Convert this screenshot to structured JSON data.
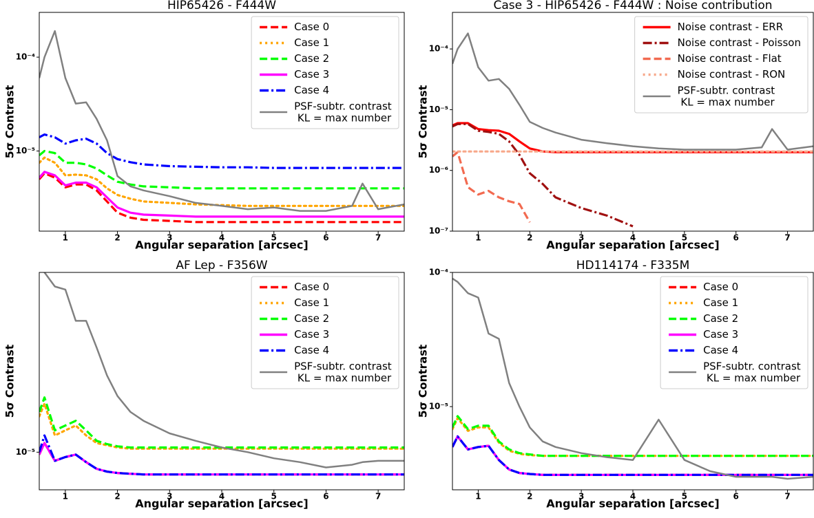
{
  "chart_data": [
    {
      "type": "line",
      "title": "HIP65426 - F444W",
      "xlabel": "Angular separation [arcsec]",
      "ylabel": "5σ Contrast",
      "yscale": "log",
      "legend": "upper right",
      "xlim": [
        0.5,
        7.5
      ],
      "xticks": [
        1,
        2,
        3,
        4,
        5,
        6,
        7
      ],
      "ylim": [
        1.4e-06,
        0.0003
      ],
      "yticks": [
        {
          "value": 1e-05,
          "label": "10⁻⁵"
        },
        {
          "value": 0.0001,
          "label": "10⁻⁴"
        }
      ],
      "x": [
        0.5,
        0.6,
        0.8,
        1.0,
        1.2,
        1.4,
        1.6,
        1.8,
        2.0,
        2.25,
        2.5,
        3,
        3.5,
        4,
        4.5,
        5,
        5.5,
        6,
        6.5,
        6.7,
        7,
        7.5
      ],
      "series": [
        {
          "name": "Case 0",
          "color": "#ff0000",
          "dash": "dashed",
          "values": [
            5e-06,
            5.8e-06,
            5.2e-06,
            4.1e-06,
            4.4e-06,
            4.4e-06,
            3.8e-06,
            2.9e-06,
            2.2e-06,
            1.95e-06,
            1.85e-06,
            1.8e-06,
            1.75e-06,
            1.75e-06,
            1.75e-06,
            1.75e-06,
            1.75e-06,
            1.75e-06,
            1.75e-06,
            1.75e-06,
            1.75e-06,
            1.75e-06
          ]
        },
        {
          "name": "Case 1",
          "color": "#ffa500",
          "dash": "dotted",
          "values": [
            7.5e-06,
            8.5e-06,
            7.5e-06,
            5.5e-06,
            5.6e-06,
            5.5e-06,
            5e-06,
            4e-06,
            3.4e-06,
            3.1e-06,
            2.9e-06,
            2.8e-06,
            2.7e-06,
            2.65e-06,
            2.6e-06,
            2.6e-06,
            2.6e-06,
            2.6e-06,
            2.6e-06,
            2.6e-06,
            2.6e-06,
            2.6e-06
          ]
        },
        {
          "name": "Case 2",
          "color": "#00ff00",
          "dash": "dashed",
          "values": [
            9e-06,
            1e-05,
            9.5e-06,
            7.5e-06,
            7.5e-06,
            7.2e-06,
            6.5e-06,
            5.5e-06,
            4.7e-06,
            4.4e-06,
            4.2e-06,
            4.1e-06,
            4e-06,
            4e-06,
            4e-06,
            4e-06,
            4e-06,
            4e-06,
            4e-06,
            4e-06,
            4e-06,
            4e-06
          ]
        },
        {
          "name": "Case 3",
          "color": "#ff00ff",
          "dash": "solid",
          "values": [
            5.2e-06,
            6e-06,
            5.5e-06,
            4.3e-06,
            4.6e-06,
            4.6e-06,
            4.1e-06,
            3.2e-06,
            2.5e-06,
            2.2e-06,
            2.1e-06,
            2.05e-06,
            2e-06,
            2e-06,
            2e-06,
            2e-06,
            2e-06,
            2e-06,
            2e-06,
            2e-06,
            2e-06,
            2e-06
          ]
        },
        {
          "name": "Case 4",
          "color": "#0000ff",
          "dash": "dashdot",
          "values": [
            1.4e-05,
            1.5e-05,
            1.4e-05,
            1.2e-05,
            1.3e-05,
            1.35e-05,
            1.2e-05,
            9.5e-06,
            8.2e-06,
            7.6e-06,
            7.2e-06,
            6.9e-06,
            6.8e-06,
            6.7e-06,
            6.7e-06,
            6.6e-06,
            6.6e-06,
            6.6e-06,
            6.6e-06,
            6.6e-06,
            6.6e-06,
            6.6e-06
          ]
        },
        {
          "name": "PSF-subtr. contrast\n KL = max number",
          "color": "#808080",
          "dash": "solid",
          "values": [
            6e-05,
            0.0001,
            0.00019,
            6e-05,
            3.2e-05,
            3.3e-05,
            2.2e-05,
            1.3e-05,
            5.4e-06,
            4.2e-06,
            3.8e-06,
            3.3e-06,
            2.8e-06,
            2.6e-06,
            2.4e-06,
            2.5e-06,
            2.3e-06,
            2.3e-06,
            2.6e-06,
            4.5e-06,
            2.4e-06,
            2.7e-06
          ]
        }
      ]
    },
    {
      "type": "line",
      "title": "Case 3 - HIP65426 - F444W : Noise contribution",
      "xlabel": "Angular separation [arcsec]",
      "ylabel": "5σ Contrast",
      "yscale": "log",
      "legend": "upper right",
      "xlim": [
        0.5,
        7.5
      ],
      "xticks": [
        1,
        2,
        3,
        4,
        5,
        6,
        7
      ],
      "ylim": [
        1e-07,
        0.0004
      ],
      "yticks": [
        {
          "value": 1e-07,
          "label": "10⁻⁷"
        },
        {
          "value": 1e-06,
          "label": "10⁻⁶"
        },
        {
          "value": 1e-05,
          "label": "10⁻⁵"
        },
        {
          "value": 0.0001,
          "label": "10⁻⁴"
        }
      ],
      "x": [
        0.5,
        0.6,
        0.8,
        1.0,
        1.2,
        1.4,
        1.6,
        1.8,
        2.0,
        2.25,
        2.5,
        3,
        3.5,
        4,
        4.5,
        5,
        5.5,
        6,
        6.5,
        6.7,
        7,
        7.5
      ],
      "series": [
        {
          "name": "Noise contrast - ERR",
          "color": "#ff0000",
          "dash": "solid",
          "values": [
            5.5e-06,
            6e-06,
            6e-06,
            4.8e-06,
            4.6e-06,
            4.5e-06,
            4e-06,
            3e-06,
            2.3e-06,
            2.05e-06,
            2e-06,
            2e-06,
            2e-06,
            2e-06,
            2e-06,
            2e-06,
            2e-06,
            2e-06,
            2e-06,
            2e-06,
            2e-06,
            2e-06
          ]
        },
        {
          "name": "Noise contrast - Poisson",
          "color": "#a01010",
          "dash": "dashdot",
          "values": [
            5.3e-06,
            5.8e-06,
            5.8e-06,
            4.5e-06,
            4.3e-06,
            4e-06,
            3e-06,
            1.8e-06,
            9e-07,
            6e-07,
            3.6e-07,
            2.4e-07,
            1.8e-07,
            1.2e-07,
            null,
            null,
            null,
            null,
            null,
            null,
            null,
            null
          ]
        },
        {
          "name": "Noise contrast - Flat",
          "color": "#f26a50",
          "dash": "dashed",
          "values": [
            1.7e-06,
            2e-06,
            5.3e-07,
            4e-07,
            4.6e-07,
            3.6e-07,
            3.1e-07,
            2.8e-07,
            1.4e-07,
            null,
            null,
            null,
            null,
            null,
            null,
            null,
            null,
            null,
            null,
            null,
            null,
            null
          ]
        },
        {
          "name": "Noise contrast - RON",
          "color": "#f7a88a",
          "dash": "dotted",
          "values": [
            2.05e-06,
            2.05e-06,
            2.05e-06,
            2.05e-06,
            2.05e-06,
            2.05e-06,
            2.05e-06,
            2.05e-06,
            2.05e-06,
            2.05e-06,
            2.05e-06,
            2.05e-06,
            2.05e-06,
            2.05e-06,
            2.05e-06,
            2.05e-06,
            2.05e-06,
            2.05e-06,
            2.05e-06,
            2.05e-06,
            2.05e-06,
            2.05e-06
          ]
        },
        {
          "name": "PSF-subtr. contrast\n KL = max number",
          "color": "#808080",
          "dash": "solid",
          "values": [
            5.7e-05,
            0.0001,
            0.00018,
            5e-05,
            3e-05,
            3.2e-05,
            2.2e-05,
            1.2e-05,
            6.3e-06,
            5e-06,
            4.2e-06,
            3.2e-06,
            2.8e-06,
            2.5e-06,
            2.3e-06,
            2.2e-06,
            2.2e-06,
            2.2e-06,
            2.4e-06,
            4.8e-06,
            2.2e-06,
            2.5e-06
          ]
        }
      ]
    },
    {
      "type": "line",
      "title": "AF Lep - F356W",
      "xlabel": "Angular separation [arcsec]",
      "ylabel": "5σ Contrast",
      "yscale": "log",
      "legend": "upper right",
      "xlim": [
        0.5,
        7.5
      ],
      "xticks": [
        1,
        2,
        3,
        4,
        5,
        6,
        7
      ],
      "ylim": [
        7.3e-06,
        4.5e-05
      ],
      "yticks": [
        {
          "value": 1e-05,
          "label": "10⁻⁵"
        }
      ],
      "x": [
        0.5,
        0.6,
        0.8,
        1.0,
        1.2,
        1.4,
        1.6,
        1.8,
        2.0,
        2.25,
        2.5,
        3,
        3.5,
        4,
        4.5,
        5,
        5.5,
        6,
        6.5,
        6.7,
        7,
        7.5
      ],
      "series": [
        {
          "name": "Case 0",
          "color": "#ff0000",
          "dash": "dashed",
          "values": [
            9.8e-06,
            1.08e-05,
            9.3e-06,
            9.6e-06,
            9.8e-06,
            9.2e-06,
            8.7e-06,
            8.5e-06,
            8.4e-06,
            8.35e-06,
            8.3e-06,
            8.3e-06,
            8.3e-06,
            8.3e-06,
            8.3e-06,
            8.3e-06,
            8.3e-06,
            8.3e-06,
            8.3e-06,
            8.3e-06,
            8.3e-06,
            8.3e-06
          ]
        },
        {
          "name": "Case 1",
          "color": "#ffa500",
          "dash": "dotted",
          "values": [
            1.35e-05,
            1.5e-05,
            1.15e-05,
            1.2e-05,
            1.25e-05,
            1.15e-05,
            1.08e-05,
            1.06e-05,
            1.04e-05,
            1.03e-05,
            1.03e-05,
            1.03e-05,
            1.03e-05,
            1.03e-05,
            1.03e-05,
            1.03e-05,
            1.03e-05,
            1.03e-05,
            1.03e-05,
            1.03e-05,
            1.03e-05,
            1.03e-05
          ]
        },
        {
          "name": "Case 2",
          "color": "#00ff00",
          "dash": "dashed",
          "values": [
            1.4e-05,
            1.58e-05,
            1.2e-05,
            1.25e-05,
            1.3e-05,
            1.2e-05,
            1.1e-05,
            1.07e-05,
            1.05e-05,
            1.04e-05,
            1.04e-05,
            1.04e-05,
            1.04e-05,
            1.04e-05,
            1.04e-05,
            1.04e-05,
            1.04e-05,
            1.04e-05,
            1.04e-05,
            1.04e-05,
            1.04e-05,
            1.04e-05
          ]
        },
        {
          "name": "Case 3",
          "color": "#ff00ff",
          "dash": "solid",
          "values": [
            9.8e-06,
            1.08e-05,
            9.3e-06,
            9.6e-06,
            9.8e-06,
            9.2e-06,
            8.7e-06,
            8.5e-06,
            8.4e-06,
            8.35e-06,
            8.3e-06,
            8.3e-06,
            8.3e-06,
            8.3e-06,
            8.3e-06,
            8.3e-06,
            8.3e-06,
            8.3e-06,
            8.3e-06,
            8.3e-06,
            8.3e-06,
            8.3e-06
          ]
        },
        {
          "name": "Case 4",
          "color": "#0000ff",
          "dash": "dashdot",
          "values": [
            1e-05,
            1.15e-05,
            9.3e-06,
            9.6e-06,
            9.8e-06,
            9.2e-06,
            8.7e-06,
            8.5e-06,
            8.4e-06,
            8.35e-06,
            8.3e-06,
            8.3e-06,
            8.3e-06,
            8.3e-06,
            8.3e-06,
            8.3e-06,
            8.3e-06,
            8.3e-06,
            8.3e-06,
            8.3e-06,
            8.3e-06,
            8.3e-06
          ]
        },
        {
          "name": "PSF-subtr. contrast\n KL = max number",
          "color": "#808080",
          "dash": "solid",
          "values": [
            5e-05,
            4.5e-05,
            4e-05,
            3.9e-05,
            3e-05,
            3e-05,
            2.4e-05,
            1.9e-05,
            1.6e-05,
            1.4e-05,
            1.3e-05,
            1.17e-05,
            1.1e-05,
            1.04e-05,
            1e-05,
            9.5e-06,
            9.2e-06,
            8.8e-06,
            9e-06,
            9.2e-06,
            9.3e-06,
            9.3e-06
          ]
        }
      ]
    },
    {
      "type": "line",
      "title": "HD114174 - F335M",
      "xlabel": "Angular separation [arcsec]",
      "ylabel": "5σ Contrast",
      "yscale": "log",
      "legend": "upper right",
      "xlim": [
        0.5,
        7.5
      ],
      "xticks": [
        1,
        2,
        3,
        4,
        5,
        6,
        7
      ],
      "ylim": [
        2.4e-06,
        0.0001
      ],
      "yticks": [
        {
          "value": 1e-05,
          "label": "10⁻⁵"
        },
        {
          "value": 0.0001,
          "label": "10⁻⁴"
        }
      ],
      "x": [
        0.5,
        0.6,
        0.8,
        1.0,
        1.2,
        1.4,
        1.6,
        1.8,
        2.0,
        2.25,
        2.5,
        3,
        3.5,
        4,
        4.5,
        5,
        5.5,
        6,
        6.5,
        6.7,
        7,
        7.5
      ],
      "series": [
        {
          "name": "Case 0",
          "color": "#ff0000",
          "dash": "dashed",
          "values": [
            5e-06,
            6e-06,
            4.8e-06,
            5e-06,
            5.1e-06,
            4e-06,
            3.4e-06,
            3.2e-06,
            3.15e-06,
            3.1e-06,
            3.1e-06,
            3.1e-06,
            3.1e-06,
            3.1e-06,
            3.1e-06,
            3.1e-06,
            3.1e-06,
            3.1e-06,
            3.1e-06,
            3.1e-06,
            3.1e-06,
            3.1e-06
          ]
        },
        {
          "name": "Case 1",
          "color": "#ffa500",
          "dash": "dotted",
          "values": [
            6.8e-06,
            8.2e-06,
            6.6e-06,
            7e-06,
            7e-06,
            5.4e-06,
            4.7e-06,
            4.45e-06,
            4.35e-06,
            4.3e-06,
            4.3e-06,
            4.3e-06,
            4.3e-06,
            4.3e-06,
            4.3e-06,
            4.3e-06,
            4.3e-06,
            4.3e-06,
            4.3e-06,
            4.3e-06,
            4.3e-06,
            4.3e-06
          ]
        },
        {
          "name": "Case 2",
          "color": "#00ff00",
          "dash": "dashed",
          "values": [
            7e-06,
            8.5e-06,
            6.8e-06,
            7.2e-06,
            7.2e-06,
            5.5e-06,
            4.8e-06,
            4.5e-06,
            4.4e-06,
            4.3e-06,
            4.3e-06,
            4.3e-06,
            4.3e-06,
            4.3e-06,
            4.3e-06,
            4.3e-06,
            4.3e-06,
            4.3e-06,
            4.3e-06,
            4.3e-06,
            4.3e-06,
            4.3e-06
          ]
        },
        {
          "name": "Case 3",
          "color": "#ff00ff",
          "dash": "solid",
          "values": [
            5e-06,
            6e-06,
            4.8e-06,
            5e-06,
            5.1e-06,
            4e-06,
            3.4e-06,
            3.2e-06,
            3.15e-06,
            3.1e-06,
            3.1e-06,
            3.1e-06,
            3.1e-06,
            3.1e-06,
            3.1e-06,
            3.1e-06,
            3.1e-06,
            3.1e-06,
            3.1e-06,
            3.1e-06,
            3.1e-06,
            3.1e-06
          ]
        },
        {
          "name": "Case 4",
          "color": "#0000ff",
          "dash": "dashdot",
          "values": [
            5e-06,
            6e-06,
            4.8e-06,
            5e-06,
            5.1e-06,
            4e-06,
            3.4e-06,
            3.2e-06,
            3.15e-06,
            3.1e-06,
            3.1e-06,
            3.1e-06,
            3.1e-06,
            3.1e-06,
            3.1e-06,
            3.1e-06,
            3.1e-06,
            3.1e-06,
            3.1e-06,
            3.1e-06,
            3.1e-06,
            3.1e-06
          ]
        },
        {
          "name": "PSF-subtr. contrast\n KL = max number",
          "color": "#808080",
          "dash": "solid",
          "values": [
            9e-05,
            8.5e-05,
            7e-05,
            6.5e-05,
            3.5e-05,
            3.2e-05,
            1.5e-05,
            1e-05,
            7e-06,
            5.5e-06,
            5e-06,
            4.5e-06,
            4.2e-06,
            4e-06,
            8e-06,
            4e-06,
            3.3e-06,
            3e-06,
            3e-06,
            3e-06,
            2.9e-06,
            3e-06
          ]
        }
      ]
    }
  ]
}
